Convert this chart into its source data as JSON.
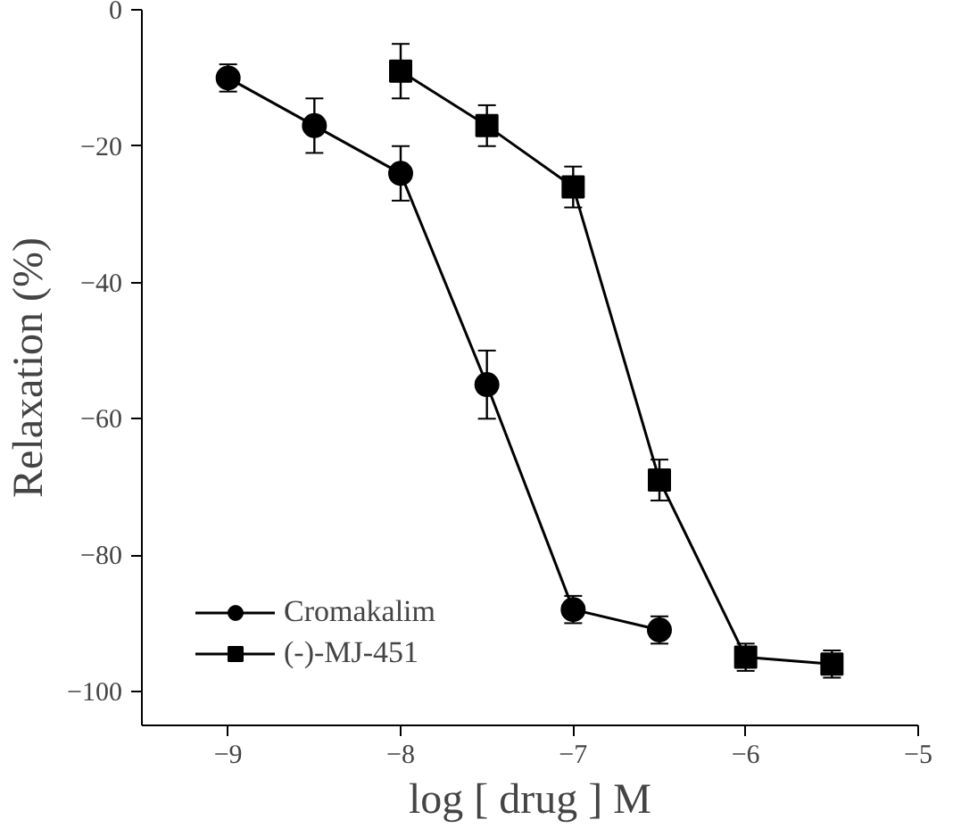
{
  "chart_data": {
    "type": "line",
    "xlabel": "log [ drug ] M",
    "ylabel": "Relaxation (%)",
    "xlim": [
      -9.5,
      -5
    ],
    "xticks": [
      -9,
      -8,
      -7,
      -6,
      -5
    ],
    "ylim": [
      -105,
      0
    ],
    "yticks": [
      0,
      -20,
      -40,
      -60,
      -80,
      -100
    ],
    "grid": false,
    "legend": "bottom left",
    "line_style": "solid",
    "series": [
      {
        "name": "Cromakalim",
        "color": "#000000",
        "marker": "circle",
        "x": [
          -9,
          -8.5,
          -8,
          -7.5,
          -7,
          -6.5
        ],
        "values": [
          -10,
          -17,
          -24,
          -55,
          -88,
          -91
        ],
        "errors": [
          2,
          4,
          4,
          5,
          2,
          2
        ]
      },
      {
        "name": "(-)-MJ-451",
        "color": "#000000",
        "marker": "square",
        "x": [
          -8,
          -7.5,
          -7,
          -6.5,
          -6,
          -5.5
        ],
        "values": [
          -9,
          -17,
          -26,
          -69,
          -95,
          -96
        ],
        "errors": [
          4,
          3,
          3,
          3,
          2,
          2
        ]
      }
    ]
  }
}
